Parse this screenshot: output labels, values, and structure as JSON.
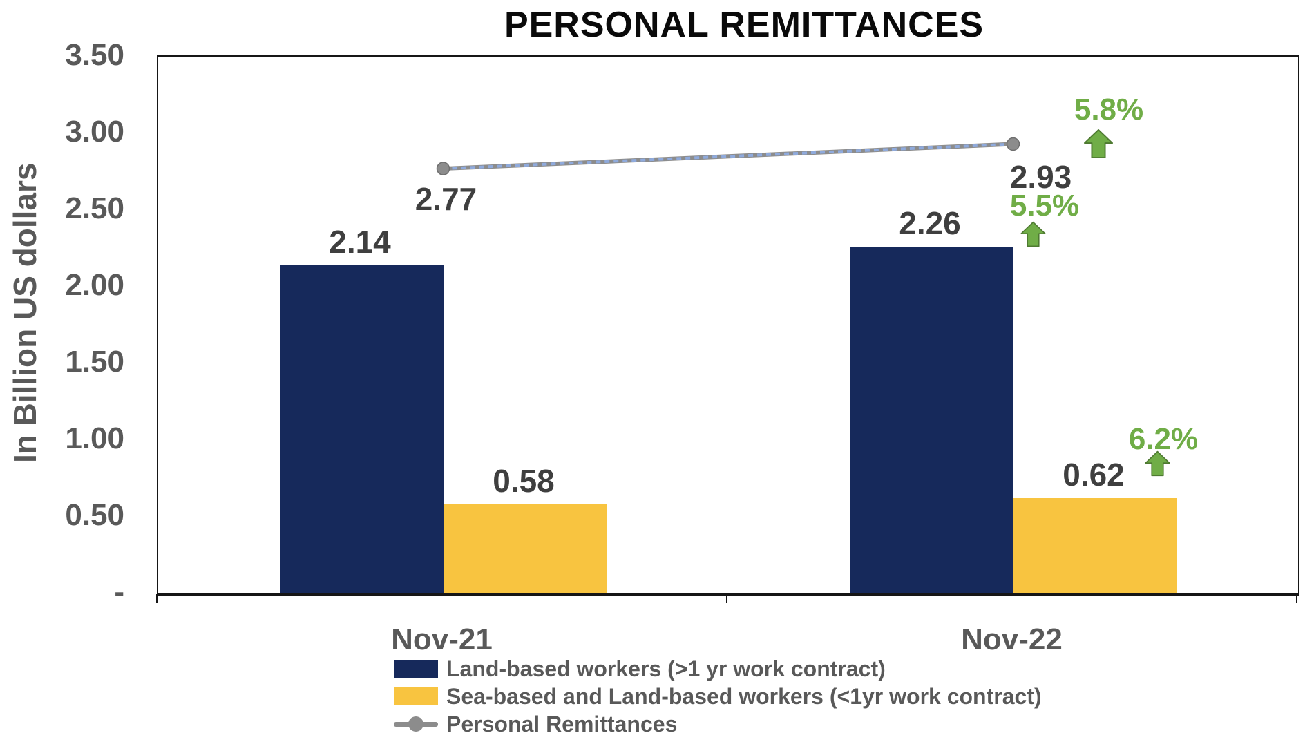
{
  "chart_data": {
    "type": "bar",
    "title": "PERSONAL REMITTANCES",
    "ylabel": "In Billion US dollars",
    "categories": [
      "Nov-21",
      "Nov-22"
    ],
    "series": [
      {
        "name": "Land-based workers (>1 yr work contract)",
        "kind": "bar",
        "color": "#16295B",
        "values": [
          2.14,
          2.26
        ],
        "value_labels": [
          "2.14",
          "2.26"
        ]
      },
      {
        "name": "Sea-based and Land-based workers (<1yr work contract)",
        "kind": "bar",
        "color": "#F8C440",
        "values": [
          0.58,
          0.62
        ],
        "value_labels": [
          "0.58",
          "0.62"
        ]
      },
      {
        "name": "Personal Remittances",
        "kind": "line",
        "color": "#8C8C8C",
        "dash_color": "#8FAADC",
        "values": [
          2.77,
          2.93
        ],
        "value_labels": [
          "2.77",
          "2.93"
        ]
      }
    ],
    "ylim": [
      0,
      3.5
    ],
    "ytick_labels": [
      "3.50",
      "3.00",
      "2.50",
      "2.00",
      "1.50",
      "1.00",
      "0.50",
      "-"
    ],
    "grid": false,
    "legend_position": "bottom-left",
    "annotations": [
      {
        "label": "5.8%",
        "series": "Personal Remittances",
        "category": "Nov-22",
        "direction": "up",
        "color": "#70AD47"
      },
      {
        "label": "5.5%",
        "series": "Land-based workers (>1 yr work contract)",
        "category": "Nov-22",
        "direction": "up",
        "color": "#70AD47"
      },
      {
        "label": "6.2%",
        "series": "Sea-based and Land-based workers (<1yr work contract)",
        "category": "Nov-22",
        "direction": "up",
        "color": "#70AD47"
      }
    ]
  },
  "colors": {
    "axis": "#161616",
    "tick_text": "#595959",
    "value_text": "#3F3F3F",
    "annotation_green": "#70AD47",
    "arrow_outline": "#4E7A31",
    "line_gray": "#8C8C8C",
    "line_dash_blue": "#8FAADC"
  }
}
